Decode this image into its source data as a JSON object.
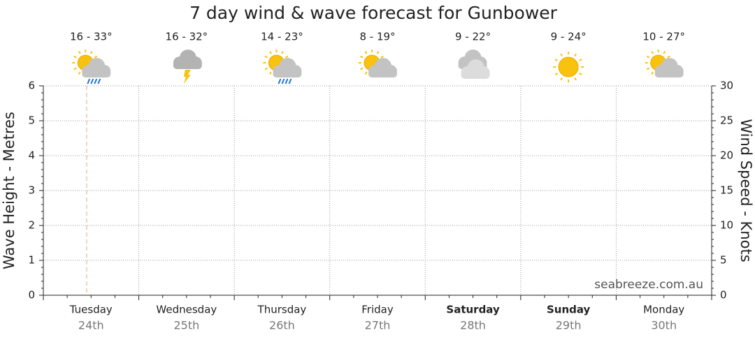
{
  "chart_data": {
    "type": "line",
    "title": "7 day wind & wave forecast for Gunbower",
    "categories": [
      "Tuesday",
      "Wednesday",
      "Thursday",
      "Friday",
      "Saturday",
      "Sunday",
      "Monday"
    ],
    "dates": [
      "24th",
      "25th",
      "26th",
      "27th",
      "28th",
      "29th",
      "30th"
    ],
    "bold": [
      false,
      false,
      false,
      false,
      true,
      true,
      false
    ],
    "temperatures": [
      "16 - 33°",
      "16 - 32°",
      "14 - 23°",
      "8 - 19°",
      "9 - 22°",
      "9 - 24°",
      "10 - 27°"
    ],
    "icons": [
      "sun-cloud-rain",
      "storm",
      "sun-cloud-rain",
      "sun-cloud",
      "cloud",
      "sun",
      "sun-cloud"
    ],
    "y_label": "Wave Height - Metres",
    "y2_label": "Wind Speed - Knots",
    "ylim": [
      0,
      6
    ],
    "yticks": [
      0,
      1,
      2,
      3,
      4,
      5,
      6
    ],
    "y2lim": [
      0,
      30
    ],
    "y2ticks": [
      0,
      5,
      10,
      15,
      20,
      25,
      30
    ],
    "grid": true,
    "watermark": "seabreeze.com.au"
  }
}
